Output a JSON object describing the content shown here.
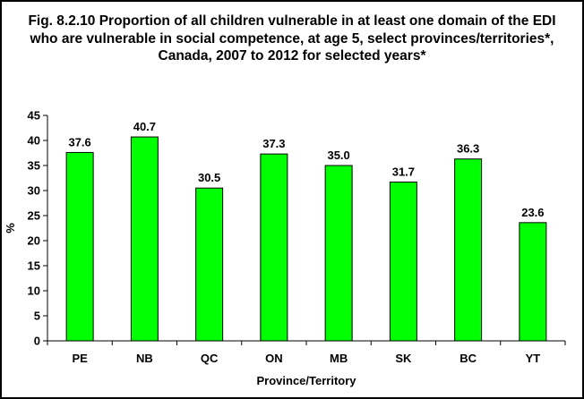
{
  "chart_data": {
    "type": "bar",
    "title": "Fig. 8.2.10 Proportion of all children vulnerable in at least one domain of the EDI who are vulnerable in social competence, at age 5, select provinces/territories*, Canada, 2007 to 2012 for selected years*",
    "xlabel": "Province/Territory",
    "ylabel": "%",
    "categories": [
      "PE",
      "NB",
      "QC",
      "ON",
      "MB",
      "SK",
      "BC",
      "YT"
    ],
    "values": [
      37.6,
      40.7,
      30.5,
      37.3,
      35.0,
      31.7,
      36.3,
      23.6
    ],
    "data_labels": [
      "37.6",
      "40.7",
      "30.5",
      "37.3",
      "35.0",
      "31.7",
      "36.3",
      "23.6"
    ],
    "ylim": [
      0,
      45
    ],
    "yticks": [
      "0",
      "5",
      "10",
      "15",
      "20",
      "25",
      "30",
      "35",
      "40",
      "45"
    ],
    "grid": false,
    "legend": "none",
    "colors": {
      "bar": "#00FF00",
      "bar_stroke": "#000000",
      "background": "#FFFFFF"
    }
  }
}
